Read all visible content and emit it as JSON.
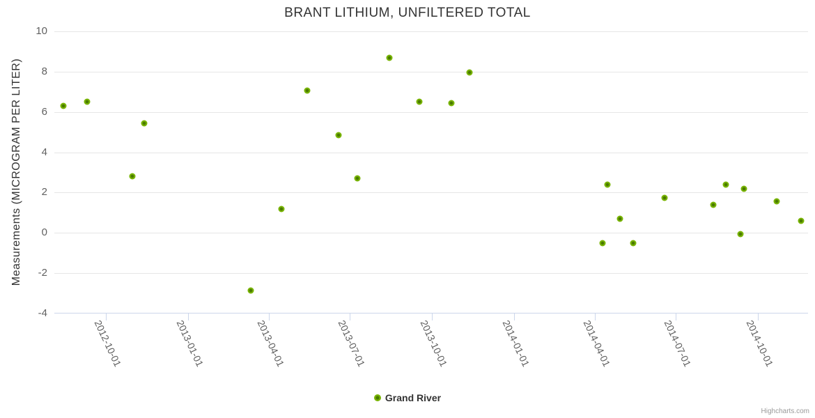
{
  "title": "BRANT LITHIUM, UNFILTERED TOTAL",
  "credit": "Highcharts.com",
  "colors": {
    "point": "#77b300",
    "point_core": "#4a7a00",
    "grid": "#e6e6e6",
    "axis": "#ccd6eb",
    "title_text": "#333333",
    "axis_label_text": "#606060",
    "legend_text": "#333333",
    "credit_text": "#999999"
  },
  "chart_data": {
    "type": "scatter",
    "title": "BRANT LITHIUM, UNFILTERED TOTAL",
    "xlabel": "",
    "ylabel": "Measurements (MICROGRAM PER LITER)",
    "ylim": [
      -4,
      10
    ],
    "y_ticks": [
      10,
      8,
      6,
      4,
      2,
      0,
      -2,
      -4
    ],
    "x_range": [
      "2012-08-04",
      "2014-11-26"
    ],
    "x_ticks": [
      "2012-10-01",
      "2013-01-01",
      "2013-04-01",
      "2013-07-01",
      "2013-10-01",
      "2014-01-01",
      "2014-04-01",
      "2014-07-01",
      "2014-10-01"
    ],
    "grid": "horizontal",
    "legend_position": "bottom-center",
    "series": [
      {
        "name": "Grand River",
        "color": "#77b300",
        "points": [
          [
            "2012-08-14",
            6.3
          ],
          [
            "2012-09-10",
            6.5
          ],
          [
            "2012-10-30",
            2.8
          ],
          [
            "2012-11-13",
            5.45
          ],
          [
            "2013-03-12",
            -2.85
          ],
          [
            "2013-04-15",
            1.2
          ],
          [
            "2013-05-14",
            7.05
          ],
          [
            "2013-06-18",
            4.85
          ],
          [
            "2013-07-09",
            2.7
          ],
          [
            "2013-08-14",
            8.7
          ],
          [
            "2013-09-17",
            6.5
          ],
          [
            "2013-10-23",
            6.45
          ],
          [
            "2013-11-12",
            7.95
          ],
          [
            "2014-04-10",
            -0.5
          ],
          [
            "2014-04-15",
            2.4
          ],
          [
            "2014-04-29",
            0.7
          ],
          [
            "2014-05-14",
            -0.5
          ],
          [
            "2014-06-18",
            1.75
          ],
          [
            "2014-08-12",
            1.4
          ],
          [
            "2014-08-26",
            2.4
          ],
          [
            "2014-09-11",
            -0.05
          ],
          [
            "2014-09-15",
            2.2
          ],
          [
            "2014-10-22",
            1.55
          ],
          [
            "2014-11-18",
            0.6
          ]
        ]
      }
    ]
  }
}
